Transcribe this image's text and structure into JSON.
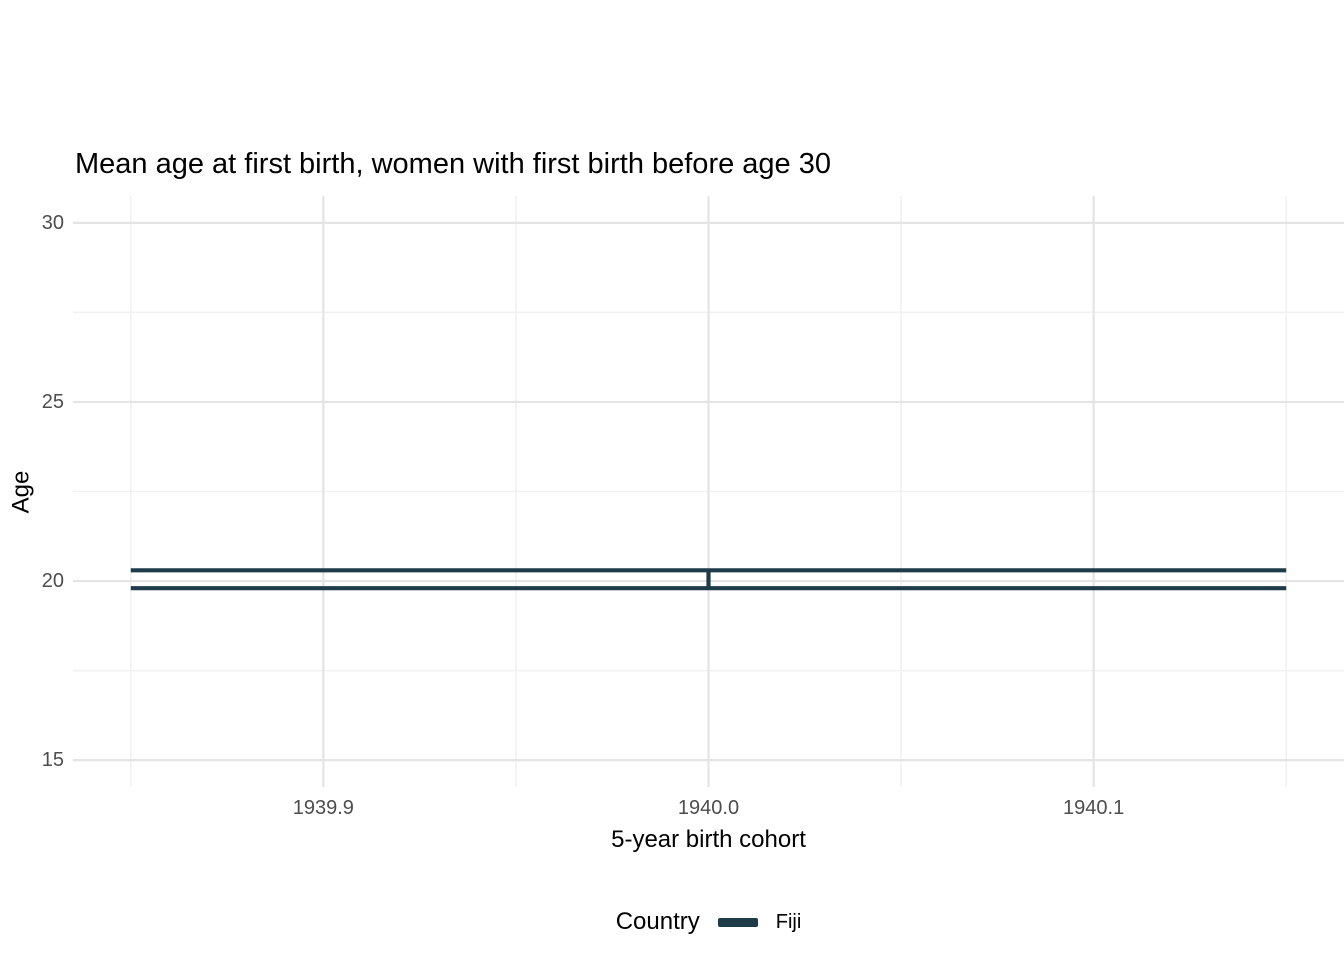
{
  "chart_data": {
    "type": "errorbar",
    "title": "Mean age at first birth, women with first birth before age 30",
    "xlabel": "5-year birth cohort",
    "ylabel": "Age",
    "xlim": [
      1939.835,
      1940.165
    ],
    "ylim": [
      14.25,
      30.75
    ],
    "x_tick_values": [
      1939.9,
      1940.0,
      1940.1
    ],
    "x_tick_labels": [
      "1939.9",
      "1940.0",
      "1940.1"
    ],
    "x_minor_values": [
      1939.85,
      1939.95,
      1940.05,
      1940.15
    ],
    "y_tick_values": [
      30,
      25,
      20,
      15
    ],
    "y_tick_labels": [
      "30",
      "25",
      "20",
      "15"
    ],
    "y_minor_values": [
      17.5,
      22.5,
      27.5
    ],
    "grid": true,
    "series": [
      {
        "name": "Fiji",
        "color": "#1e3b4a",
        "points": [
          {
            "x": 1940.0,
            "ymin": 19.8,
            "ymax": 20.3,
            "cap_xmin": 1939.85,
            "cap_xmax": 1940.15
          }
        ]
      }
    ],
    "legend": {
      "title": "Country",
      "position": "bottom",
      "entries": [
        {
          "label": "Fiji",
          "color": "#1e3b4a"
        }
      ]
    },
    "colors": {
      "line": "#1e3b4a",
      "grid_major": "#e4e4e4",
      "grid_minor": "#f1f1f1",
      "tick_text": "#4d4d4d",
      "title_text": "#000000",
      "background": "#ffffff"
    }
  },
  "legend_display": {
    "title": "Country",
    "item": "Fiji"
  }
}
